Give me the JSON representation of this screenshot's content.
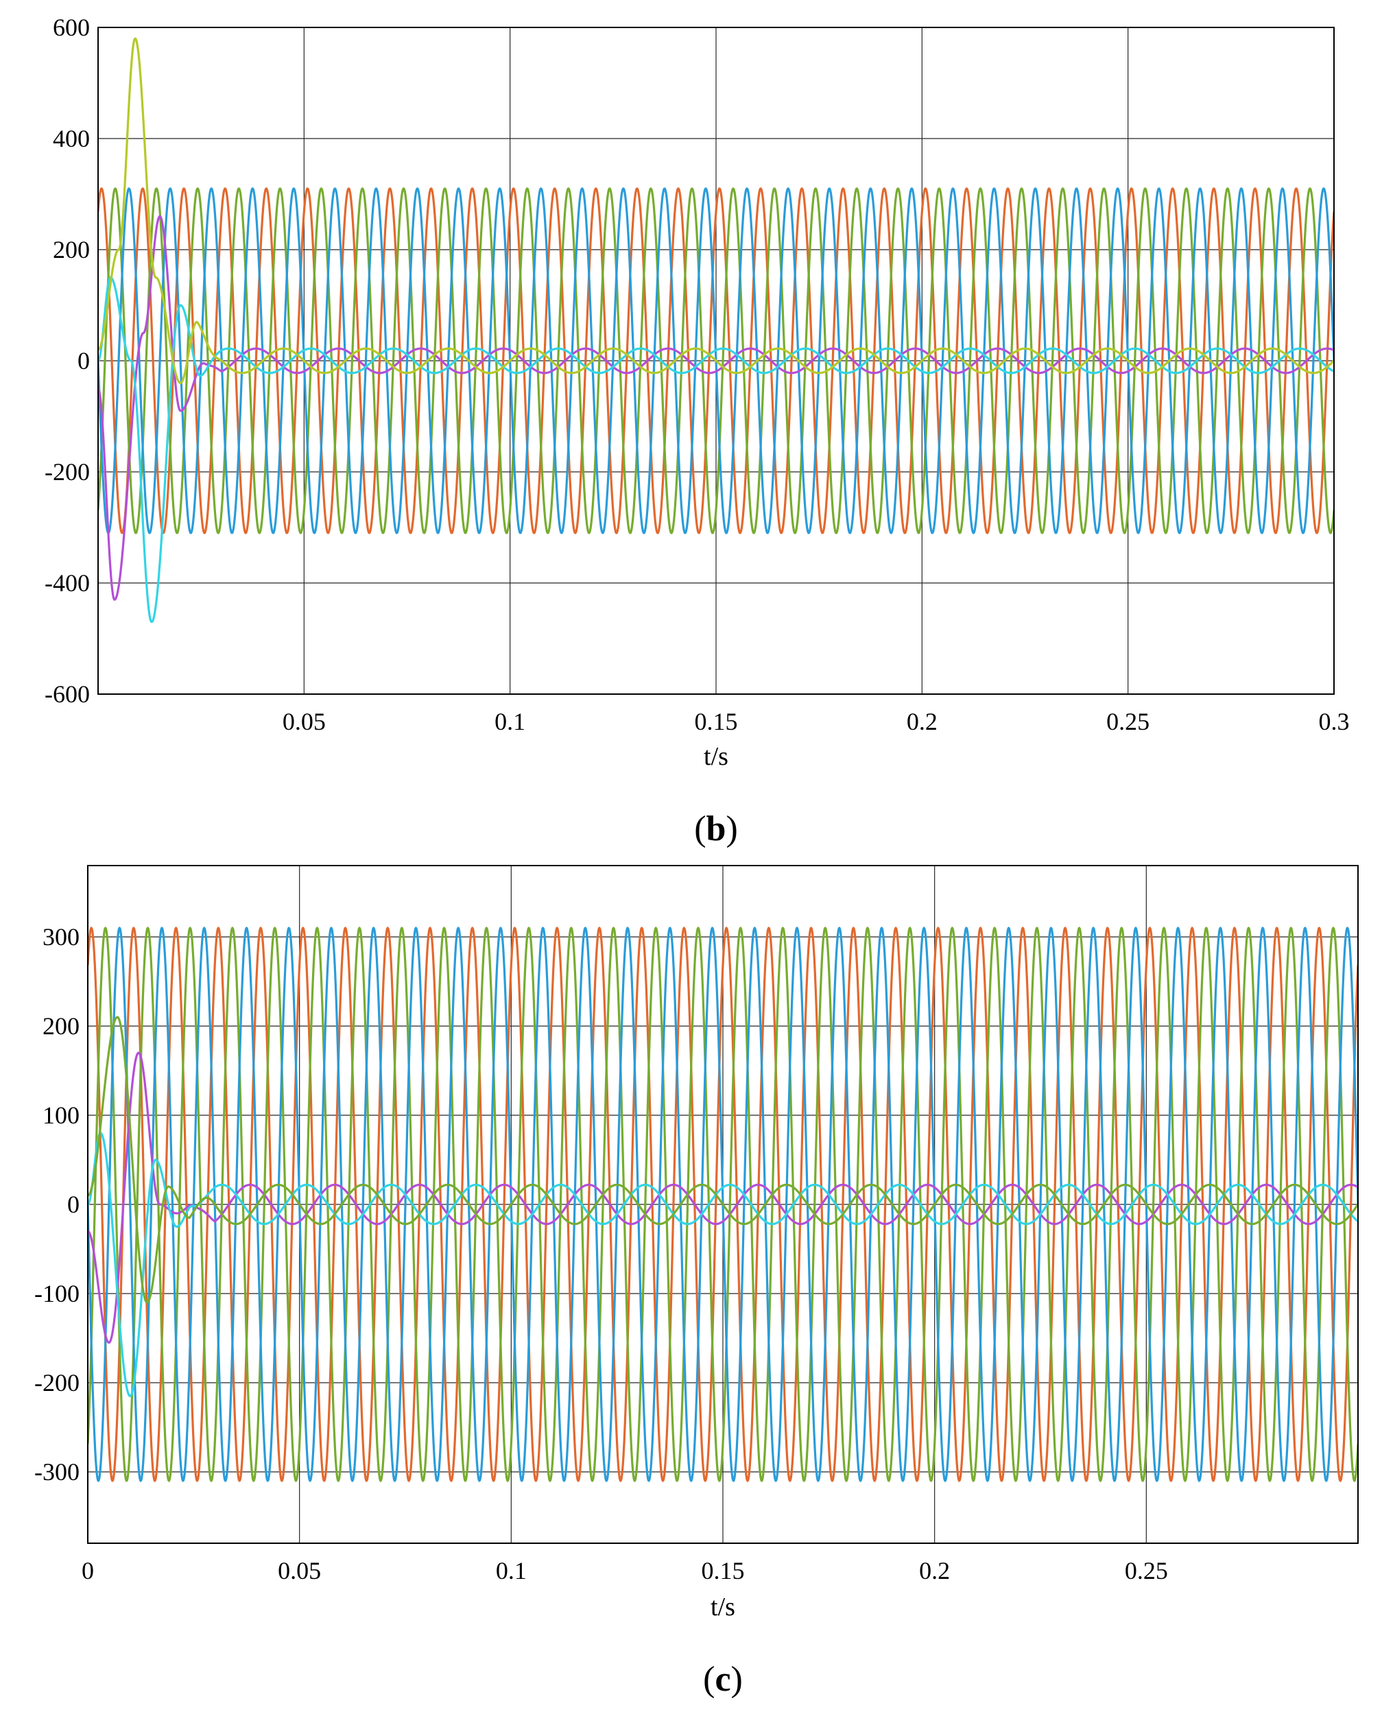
{
  "chart_data": [
    {
      "panel_label": "b",
      "type": "line",
      "xlabel": "t/s",
      "ylabel": "",
      "xlim": [
        0,
        0.3
      ],
      "ylim": [
        -600,
        600
      ],
      "x_ticks": [
        0.05,
        0.1,
        0.15,
        0.2,
        0.25,
        0.3
      ],
      "x_tick_labels": [
        "0.05",
        "0.1",
        "0.15",
        "0.2",
        "0.25",
        "0.3"
      ],
      "y_ticks": [
        600,
        400,
        200,
        0,
        -200,
        -400,
        -600
      ],
      "y_tick_labels": [
        "600",
        "400",
        "200",
        "0",
        "-200",
        "-400",
        "-600"
      ],
      "grid": true,
      "series": [
        {
          "color": "#E2692E",
          "kind": "sine",
          "amplitude": 310,
          "frequency_hz": 100,
          "phase_deg": 60
        },
        {
          "color": "#77AC30",
          "kind": "sine",
          "amplitude": 310,
          "frequency_hz": 100,
          "phase_deg": -60
        },
        {
          "color": "#2A9CD9",
          "kind": "sine",
          "amplitude": 310,
          "frequency_hz": 100,
          "phase_deg": 180
        },
        {
          "color": "#B44FD6",
          "kind": "damped",
          "amplitude": 22,
          "frequency_hz": 50,
          "phase_deg": 120,
          "transient": [
            [
              0,
              -50
            ],
            [
              0.004,
              -430
            ],
            [
              0.011,
              50
            ],
            [
              0.015,
              260
            ],
            [
              0.02,
              -90
            ],
            [
              0.026,
              0
            ],
            [
              0.03,
              25
            ]
          ]
        },
        {
          "color": "#32D4E6",
          "kind": "damped",
          "amplitude": 22,
          "frequency_hz": 50,
          "phase_deg": -120,
          "transient": [
            [
              0,
              0
            ],
            [
              0.003,
              150
            ],
            [
              0.008,
              0
            ],
            [
              0.013,
              -470
            ],
            [
              0.02,
              100
            ],
            [
              0.025,
              -30
            ],
            [
              0.03,
              10
            ]
          ]
        },
        {
          "color": "#B5C928",
          "kind": "damped",
          "amplitude": 22,
          "frequency_hz": 50,
          "phase_deg": 0,
          "transient": [
            [
              0,
              20
            ],
            [
              0.005,
              200
            ],
            [
              0.009,
              580
            ],
            [
              0.014,
              150
            ],
            [
              0.02,
              -40
            ],
            [
              0.024,
              70
            ],
            [
              0.03,
              -15
            ]
          ]
        }
      ]
    },
    {
      "panel_label": "c",
      "type": "line",
      "xlabel": "t/s",
      "ylabel": "",
      "xlim": [
        0,
        0.3
      ],
      "ylim": [
        -380,
        380
      ],
      "x_ticks": [
        0,
        0.05,
        0.1,
        0.15,
        0.2,
        0.25
      ],
      "x_tick_labels": [
        "0",
        "0.05",
        "0.1",
        "0.15",
        "0.2",
        "0.25"
      ],
      "y_ticks": [
        300,
        200,
        100,
        0,
        -100,
        -200,
        -300
      ],
      "y_tick_labels": [
        "300",
        "200",
        "100",
        "0",
        "-100",
        "-200",
        "-300"
      ],
      "grid": true,
      "series": [
        {
          "color": "#E2692E",
          "kind": "sine",
          "amplitude": 310,
          "frequency_hz": 100,
          "phase_deg": 60
        },
        {
          "color": "#77AC30",
          "kind": "sine",
          "amplitude": 310,
          "frequency_hz": 100,
          "phase_deg": -60
        },
        {
          "color": "#2A9CD9",
          "kind": "sine",
          "amplitude": 310,
          "frequency_hz": 100,
          "phase_deg": 180
        },
        {
          "color": "#B44FD6",
          "kind": "damped",
          "amplitude": 22,
          "frequency_hz": 50,
          "phase_deg": 120,
          "transient": [
            [
              0,
              -30
            ],
            [
              0.005,
              -155
            ],
            [
              0.012,
              170
            ],
            [
              0.017,
              0
            ],
            [
              0.021,
              -10
            ],
            [
              0.025,
              0
            ],
            [
              0.03,
              20
            ]
          ]
        },
        {
          "color": "#32D4E6",
          "kind": "damped",
          "amplitude": 22,
          "frequency_hz": 50,
          "phase_deg": -120,
          "transient": [
            [
              0,
              0
            ],
            [
              0.003,
              80
            ],
            [
              0.01,
              -215
            ],
            [
              0.016,
              50
            ],
            [
              0.021,
              -25
            ],
            [
              0.025,
              0
            ],
            [
              0.03,
              15
            ]
          ]
        },
        {
          "color": "#77AC30",
          "kind": "damped",
          "amplitude": 22,
          "frequency_hz": 50,
          "phase_deg": 0,
          "transient": [
            [
              0,
              10
            ],
            [
              0.007,
              210
            ],
            [
              0.014,
              -110
            ],
            [
              0.019,
              20
            ],
            [
              0.024,
              -15
            ],
            [
              0.03,
              0
            ]
          ]
        }
      ]
    }
  ]
}
